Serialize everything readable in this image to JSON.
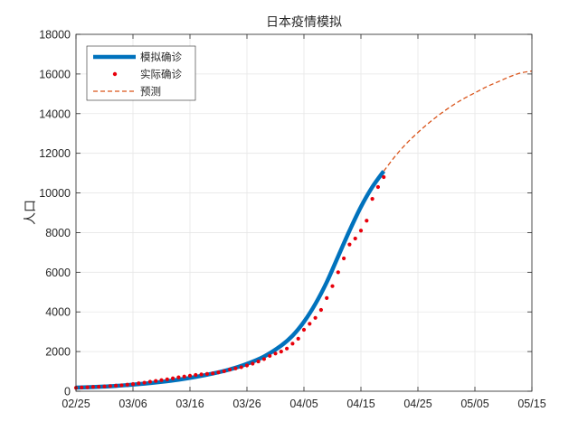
{
  "chart_data": {
    "type": "line",
    "title": "日本疫情模拟",
    "xlabel": "",
    "ylabel": "人口",
    "xlim": [
      "02/25",
      "05/15"
    ],
    "ylim": [
      0,
      18000
    ],
    "x_ticks": [
      "02/25",
      "03/06",
      "03/16",
      "03/26",
      "04/05",
      "04/15",
      "04/25",
      "05/05",
      "05/15"
    ],
    "y_ticks": [
      0,
      2000,
      4000,
      6000,
      8000,
      10000,
      12000,
      14000,
      16000,
      18000
    ],
    "grid": true,
    "legend_position": "top-left",
    "series": [
      {
        "name": "模拟确诊",
        "style": "solid-thick",
        "color": "#0072BD",
        "points": [
          [
            "02/25",
            180
          ],
          [
            "02/28",
            210
          ],
          [
            "03/02",
            250
          ],
          [
            "03/05",
            310
          ],
          [
            "03/08",
            380
          ],
          [
            "03/11",
            470
          ],
          [
            "03/14",
            580
          ],
          [
            "03/17",
            720
          ],
          [
            "03/20",
            890
          ],
          [
            "03/23",
            1100
          ],
          [
            "03/26",
            1380
          ],
          [
            "03/29",
            1750
          ],
          [
            "04/01",
            2300
          ],
          [
            "04/03",
            2800
          ],
          [
            "04/05",
            3500
          ],
          [
            "04/07",
            4400
          ],
          [
            "04/09",
            5500
          ],
          [
            "04/11",
            6800
          ],
          [
            "04/13",
            8100
          ],
          [
            "04/15",
            9300
          ],
          [
            "04/17",
            10300
          ],
          [
            "04/19",
            11100
          ]
        ]
      },
      {
        "name": "实际确诊",
        "style": "dots",
        "color": "#E8000B",
        "points": [
          [
            "02/25",
            170
          ],
          [
            "02/26",
            190
          ],
          [
            "02/27",
            200
          ],
          [
            "02/28",
            215
          ],
          [
            "02/29",
            225
          ],
          [
            "03/01",
            240
          ],
          [
            "03/02",
            260
          ],
          [
            "03/03",
            280
          ],
          [
            "03/04",
            300
          ],
          [
            "03/05",
            330
          ],
          [
            "03/06",
            360
          ],
          [
            "03/07",
            400
          ],
          [
            "03/08",
            430
          ],
          [
            "03/09",
            480
          ],
          [
            "03/10",
            520
          ],
          [
            "03/11",
            560
          ],
          [
            "03/12",
            600
          ],
          [
            "03/13",
            650
          ],
          [
            "03/14",
            700
          ],
          [
            "03/15",
            740
          ],
          [
            "03/16",
            780
          ],
          [
            "03/17",
            820
          ],
          [
            "03/18",
            850
          ],
          [
            "03/19",
            870
          ],
          [
            "03/20",
            900
          ],
          [
            "03/21",
            950
          ],
          [
            "03/22",
            1010
          ],
          [
            "03/23",
            1090
          ],
          [
            "03/24",
            1150
          ],
          [
            "03/25",
            1210
          ],
          [
            "03/26",
            1300
          ],
          [
            "03/27",
            1390
          ],
          [
            "03/28",
            1500
          ],
          [
            "03/29",
            1620
          ],
          [
            "03/30",
            1780
          ],
          [
            "03/31",
            1900
          ],
          [
            "04/01",
            2000
          ],
          [
            "04/02",
            2150
          ],
          [
            "04/03",
            2400
          ],
          [
            "04/04",
            2650
          ],
          [
            "04/05",
            3100
          ],
          [
            "04/06",
            3400
          ],
          [
            "04/07",
            3700
          ],
          [
            "04/08",
            4100
          ],
          [
            "04/09",
            4700
          ],
          [
            "04/10",
            5300
          ],
          [
            "04/11",
            6000
          ],
          [
            "04/12",
            6700
          ],
          [
            "04/13",
            7400
          ],
          [
            "04/14",
            7700
          ],
          [
            "04/15",
            8100
          ],
          [
            "04/16",
            8600
          ],
          [
            "04/17",
            9700
          ],
          [
            "04/18",
            10300
          ],
          [
            "04/19",
            10800
          ]
        ]
      },
      {
        "name": "预测",
        "style": "dashed",
        "color": "#D95319",
        "points": [
          [
            "04/19",
            11100
          ],
          [
            "04/21",
            11850
          ],
          [
            "04/23",
            12500
          ],
          [
            "04/25",
            13050
          ],
          [
            "04/27",
            13550
          ],
          [
            "04/29",
            14000
          ],
          [
            "05/01",
            14400
          ],
          [
            "05/03",
            14750
          ],
          [
            "05/05",
            15050
          ],
          [
            "05/07",
            15350
          ],
          [
            "05/09",
            15600
          ],
          [
            "05/11",
            15850
          ],
          [
            "05/13",
            16050
          ],
          [
            "05/15",
            16150
          ]
        ]
      }
    ]
  }
}
